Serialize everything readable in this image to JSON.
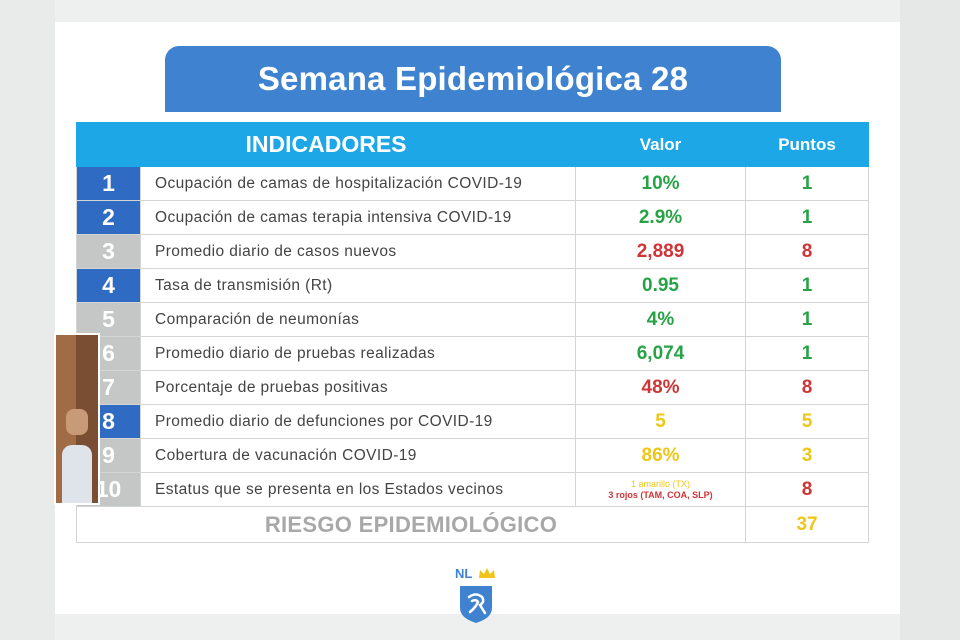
{
  "title": "Semana Epidemiológica 28",
  "header": {
    "indicadores": "INDICADORES",
    "valor": "Valor",
    "puntos": "Puntos"
  },
  "rows": [
    {
      "num": "1",
      "label": "Ocupación de camas de hospitalización COVID-19",
      "value": "10%",
      "points": "1"
    },
    {
      "num": "2",
      "label": "Ocupación de camas terapia intensiva COVID-19",
      "value": "2.9%",
      "points": "1"
    },
    {
      "num": "3",
      "label": "Promedio diario de casos nuevos",
      "value": "2,889",
      "points": "8"
    },
    {
      "num": "4",
      "label": "Tasa de transmisión (Rt)",
      "value": "0.95",
      "points": "1"
    },
    {
      "num": "5",
      "label": "Comparación de neumonías",
      "value": "4%",
      "points": "1"
    },
    {
      "num": "6",
      "label": "Promedio diario de pruebas realizadas",
      "value": "6,074",
      "points": "1"
    },
    {
      "num": "7",
      "label": "Porcentaje de pruebas positivas",
      "value": "48%",
      "points": "8"
    },
    {
      "num": "8",
      "label": "Promedio diario de defunciones por COVID-19",
      "value": "5",
      "points": "5"
    },
    {
      "num": "9",
      "label": "Cobertura de vacunación COVID-19",
      "value": "86%",
      "points": "3"
    },
    {
      "num": "10",
      "label": "Estatus que se presenta en los Estados vecinos",
      "value_line1": "1 amarillo (TX)",
      "value_line2": "3 rojos (TAM, COA, SLP)",
      "points": "8"
    }
  ],
  "risk": {
    "label": "RIESGO EPIDEMIOLÓGICO",
    "total": "37"
  },
  "logo": {
    "text": "NL"
  },
  "colors": {
    "title_bg": "#3f83d0",
    "header_bg": "#1ea7e6",
    "num_blue": "#2f6bc2",
    "num_gray": "#c5c6c6",
    "green": "#27a345",
    "red": "#cf3436",
    "yellow": "#efc618"
  }
}
